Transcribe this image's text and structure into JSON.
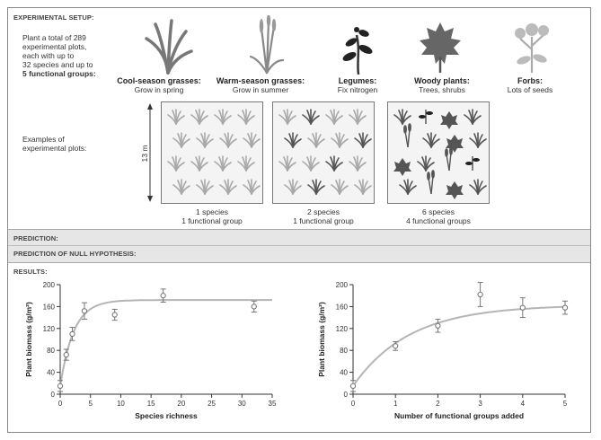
{
  "setup": {
    "header": "EXPERIMENTAL SETUP:",
    "intro_lines": [
      "Plant a total of 289",
      "experimental plots,",
      "each with up to",
      "32 species and up to"
    ],
    "intro_bold": "5 functional groups:",
    "examples_lines": [
      "Examples of",
      "experimental plots:"
    ],
    "plot_size": "13 m",
    "groups": [
      {
        "name": "Cool-season grasses:",
        "desc": "Grow in spring",
        "icon": "cool-season-grass-icon"
      },
      {
        "name": "Warm-season grasses:",
        "desc": "Grow in summer",
        "icon": "warm-season-grass-icon"
      },
      {
        "name": "Legumes:",
        "desc": "Fix nitrogen",
        "icon": "legume-icon"
      },
      {
        "name": "Woody plants:",
        "desc": "Trees, shrubs",
        "icon": "woody-plant-icon"
      },
      {
        "name": "Forbs:",
        "desc": "Lots of seeds",
        "icon": "forb-icon"
      }
    ],
    "plots": [
      {
        "line1": "1 species",
        "line2": "1 functional group"
      },
      {
        "line1": "2 species",
        "line2": "1 functional group"
      },
      {
        "line1": "6 species",
        "line2": "4 functional groups"
      }
    ]
  },
  "prediction_label": "PREDICTION:",
  "null_prediction_label": "PREDICTION OF NULL HYPOTHESIS:",
  "results_label": "RESULTS:",
  "colors": {
    "curve": "#b5b5b5",
    "marker": "#777777",
    "plant_light": "#a8a8a8",
    "plant_dark": "#555555"
  },
  "chart_data": [
    {
      "type": "scatter",
      "xlabel": "Species richness",
      "ylabel": "Plant biomass (g/m²)",
      "xlim": [
        0,
        35
      ],
      "ylim": [
        0,
        200
      ],
      "xticks": [
        "0",
        "5",
        "10",
        "15",
        "20",
        "25",
        "30",
        "35"
      ],
      "yticks": [
        "0",
        "40",
        "80",
        "120",
        "160",
        "200"
      ],
      "points": [
        {
          "x": 0,
          "y": 15,
          "err": 10
        },
        {
          "x": 1,
          "y": 72,
          "err": 10
        },
        {
          "x": 2,
          "y": 110,
          "err": 12
        },
        {
          "x": 4,
          "y": 152,
          "err": 15
        },
        {
          "x": 9,
          "y": 145,
          "err": 10
        },
        {
          "x": 17,
          "y": 180,
          "err": 12
        },
        {
          "x": 32,
          "y": 160,
          "err": 10
        }
      ],
      "fit_curve": {
        "asymptote": 172,
        "rate": 0.45
      }
    },
    {
      "type": "scatter",
      "xlabel": "Number of functional groups added",
      "ylabel": "Plant biomass (g/m²)",
      "xlim": [
        0,
        5
      ],
      "ylim": [
        0,
        200
      ],
      "xticks": [
        "0",
        "1",
        "2",
        "3",
        "4",
        "5"
      ],
      "yticks": [
        "0",
        "40",
        "80",
        "120",
        "160",
        "200"
      ],
      "points": [
        {
          "x": 0,
          "y": 15,
          "err": 10
        },
        {
          "x": 1,
          "y": 88,
          "err": 8
        },
        {
          "x": 2,
          "y": 125,
          "err": 12
        },
        {
          "x": 3,
          "y": 182,
          "err": 22
        },
        {
          "x": 4,
          "y": 158,
          "err": 18
        },
        {
          "x": 5,
          "y": 158,
          "err": 12
        }
      ],
      "fit_curve": {
        "asymptote": 163,
        "rate": 0.75
      }
    }
  ]
}
